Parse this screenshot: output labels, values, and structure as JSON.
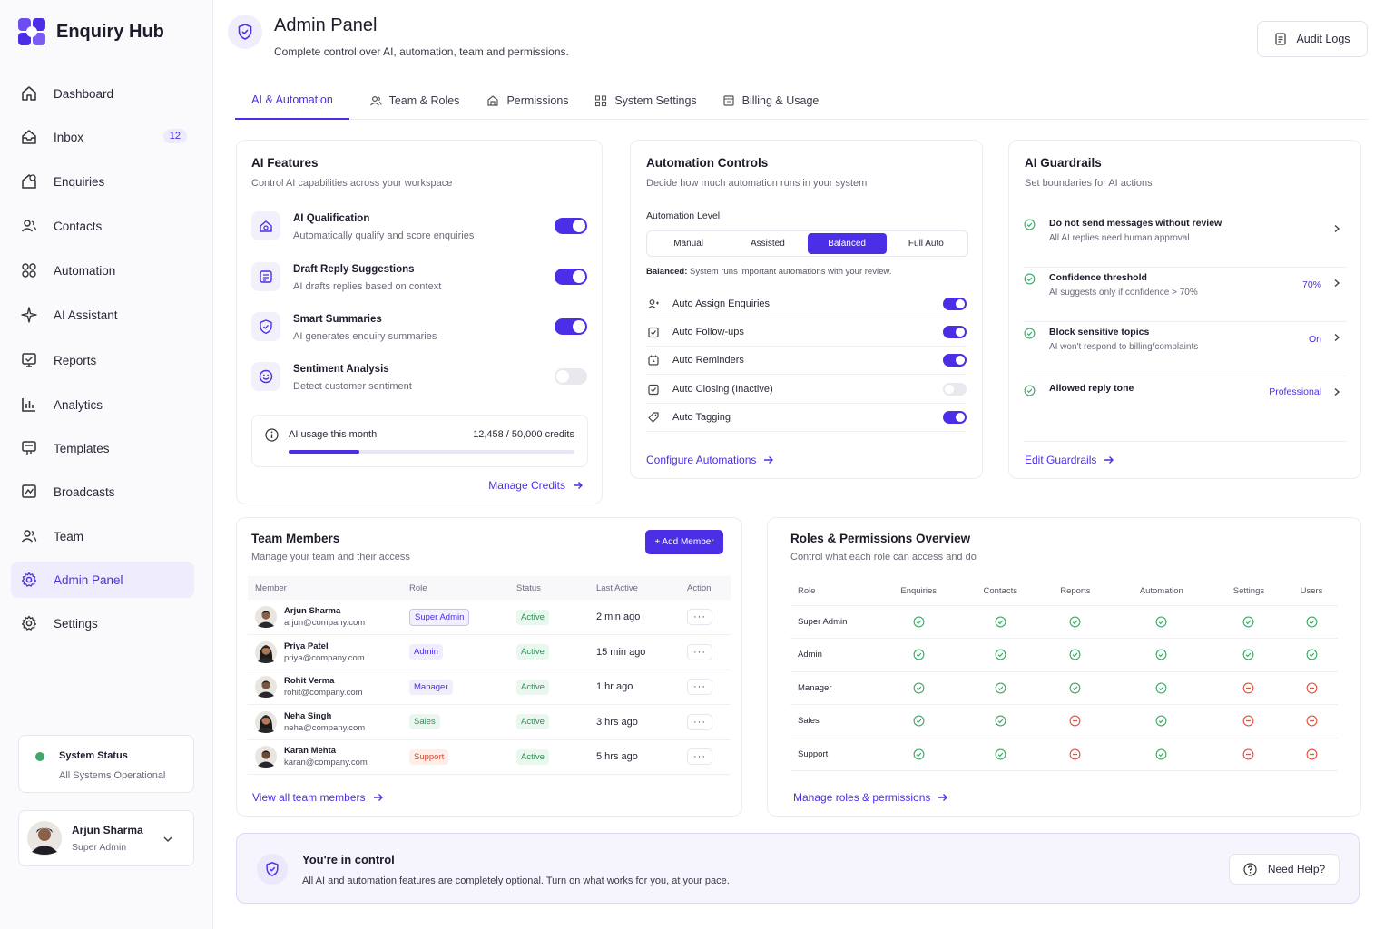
{
  "app": {
    "name": "Enquiry Hub"
  },
  "sidebar": {
    "items": [
      {
        "label": "Dashboard",
        "icon": "home-icon"
      },
      {
        "label": "Inbox",
        "icon": "inbox-icon",
        "badge": "12"
      },
      {
        "label": "Enquiries",
        "icon": "enquiries-icon"
      },
      {
        "label": "Contacts",
        "icon": "contacts-icon"
      },
      {
        "label": "Automation",
        "icon": "automation-icon"
      },
      {
        "label": "AI Assistant",
        "icon": "sparkle-icon"
      },
      {
        "label": "Reports",
        "icon": "reports-icon"
      },
      {
        "label": "Analytics",
        "icon": "analytics-icon"
      },
      {
        "label": "Templates",
        "icon": "templates-icon"
      },
      {
        "label": "Broadcasts",
        "icon": "broadcasts-icon"
      },
      {
        "label": "Team",
        "icon": "team-icon"
      },
      {
        "label": "Admin Panel",
        "icon": "gear-icon",
        "active": true
      },
      {
        "label": "Settings",
        "icon": "gear-icon"
      }
    ],
    "system_status": {
      "title": "System Status",
      "text": "All Systems Operational"
    },
    "user": {
      "name": "Arjun Sharma",
      "role": "Super Admin"
    }
  },
  "header": {
    "title": "Admin Panel",
    "subtitle": "Complete control over AI, automation, team and permissions.",
    "audit_button": "Audit Logs"
  },
  "tabs": [
    {
      "label": "AI & Automation",
      "active": true
    },
    {
      "label": "Team & Roles"
    },
    {
      "label": "Permissions"
    },
    {
      "label": "System Settings"
    },
    {
      "label": "Billing & Usage"
    }
  ],
  "ai_features": {
    "title": "AI Features",
    "subtitle": "Control AI capabilities across your workspace",
    "items": [
      {
        "title": "AI Qualification",
        "desc": "Automatically qualify and score enquiries",
        "enabled": true
      },
      {
        "title": "Draft Reply Suggestions",
        "desc": "AI drafts replies based on context",
        "enabled": true
      },
      {
        "title": "Smart Summaries",
        "desc": "AI generates enquiry summaries",
        "enabled": true
      },
      {
        "title": "Sentiment Analysis",
        "desc": "Detect customer sentiment",
        "enabled": false
      }
    ],
    "usage": {
      "label": "AI usage this month",
      "value": "12,458 / 50,000 credits",
      "fraction": 0.249
    },
    "link": "Manage Credits"
  },
  "automation": {
    "title": "Automation Controls",
    "subtitle": "Decide how much automation runs in your system",
    "level_label": "Automation Level",
    "levels": [
      "Manual",
      "Assisted",
      "Balanced",
      "Full Auto"
    ],
    "selected_level": "Balanced",
    "level_note_bold": "Balanced:",
    "level_note": " System runs important automations with your review.",
    "items": [
      {
        "label": "Auto Assign Enquiries",
        "enabled": true
      },
      {
        "label": "Auto Follow-ups",
        "enabled": true
      },
      {
        "label": "Auto Reminders",
        "enabled": true
      },
      {
        "label": "Auto Closing (Inactive)",
        "enabled": false
      },
      {
        "label": "Auto Tagging",
        "enabled": true
      }
    ],
    "link": "Configure Automations"
  },
  "guardrails": {
    "title": "AI Guardrails",
    "subtitle": "Set boundaries for AI actions",
    "items": [
      {
        "title": "Do not send messages without review",
        "desc": "All AI replies need human approval",
        "value": ""
      },
      {
        "title": "Confidence threshold",
        "desc": "AI suggests only if confidence > 70%",
        "value": "70%"
      },
      {
        "title": "Block sensitive topics",
        "desc": "AI won't respond to billing/complaints",
        "value": "On"
      },
      {
        "title": "Allowed reply tone",
        "desc": "",
        "value": "Professional"
      }
    ],
    "link": "Edit Guardrails"
  },
  "team": {
    "title": "Team Members",
    "subtitle": "Manage your team and their access",
    "add_button": "+ Add Member",
    "columns": [
      "Member",
      "Role",
      "Status",
      "Last Active",
      "Action"
    ],
    "rows": [
      {
        "name": "Arjun Sharma",
        "email": "arjun@company.com",
        "role": "Super Admin",
        "status": "Active",
        "last": "2 min ago",
        "action": "···"
      },
      {
        "name": "Priya Patel",
        "email": "priya@company.com",
        "role": "Admin",
        "status": "Active",
        "last": "15 min ago",
        "action": "···"
      },
      {
        "name": "Rohit Verma",
        "email": "rohit@company.com",
        "role": "Manager",
        "status": "Active",
        "last": "1 hr ago",
        "action": "···"
      },
      {
        "name": "Neha Singh",
        "email": "neha@company.com",
        "role": "Sales",
        "status": "Active",
        "last": "3 hrs ago",
        "action": "···"
      },
      {
        "name": "Karan Mehta",
        "email": "karan@company.com",
        "role": "Support",
        "status": "Active",
        "last": "5 hrs ago",
        "action": "···"
      }
    ],
    "link": "View all team members"
  },
  "roles": {
    "title": "Roles & Permissions Overview",
    "subtitle": "Control what each role can access and do",
    "columns": [
      "Role",
      "Enquiries",
      "Contacts",
      "Reports",
      "Automation",
      "Settings",
      "Users"
    ],
    "rows": [
      {
        "role": "Super Admin",
        "perms": [
          true,
          true,
          true,
          true,
          true,
          true
        ]
      },
      {
        "role": "Admin",
        "perms": [
          true,
          true,
          true,
          true,
          true,
          true
        ]
      },
      {
        "role": "Manager",
        "perms": [
          true,
          true,
          true,
          true,
          false,
          false
        ]
      },
      {
        "role": "Sales",
        "perms": [
          true,
          true,
          false,
          true,
          false,
          false
        ]
      },
      {
        "role": "Support",
        "perms": [
          true,
          true,
          false,
          true,
          false,
          false
        ]
      }
    ],
    "link": "Manage roles & permissions"
  },
  "banner": {
    "title": "You're in control",
    "text": "All AI and automation features are completely optional. Turn on what works for you, at your pace.",
    "help_button": "Need Help?"
  },
  "colors": {
    "accent": "#4a2fe6",
    "success": "#3fa868",
    "danger": "#e0533f"
  }
}
